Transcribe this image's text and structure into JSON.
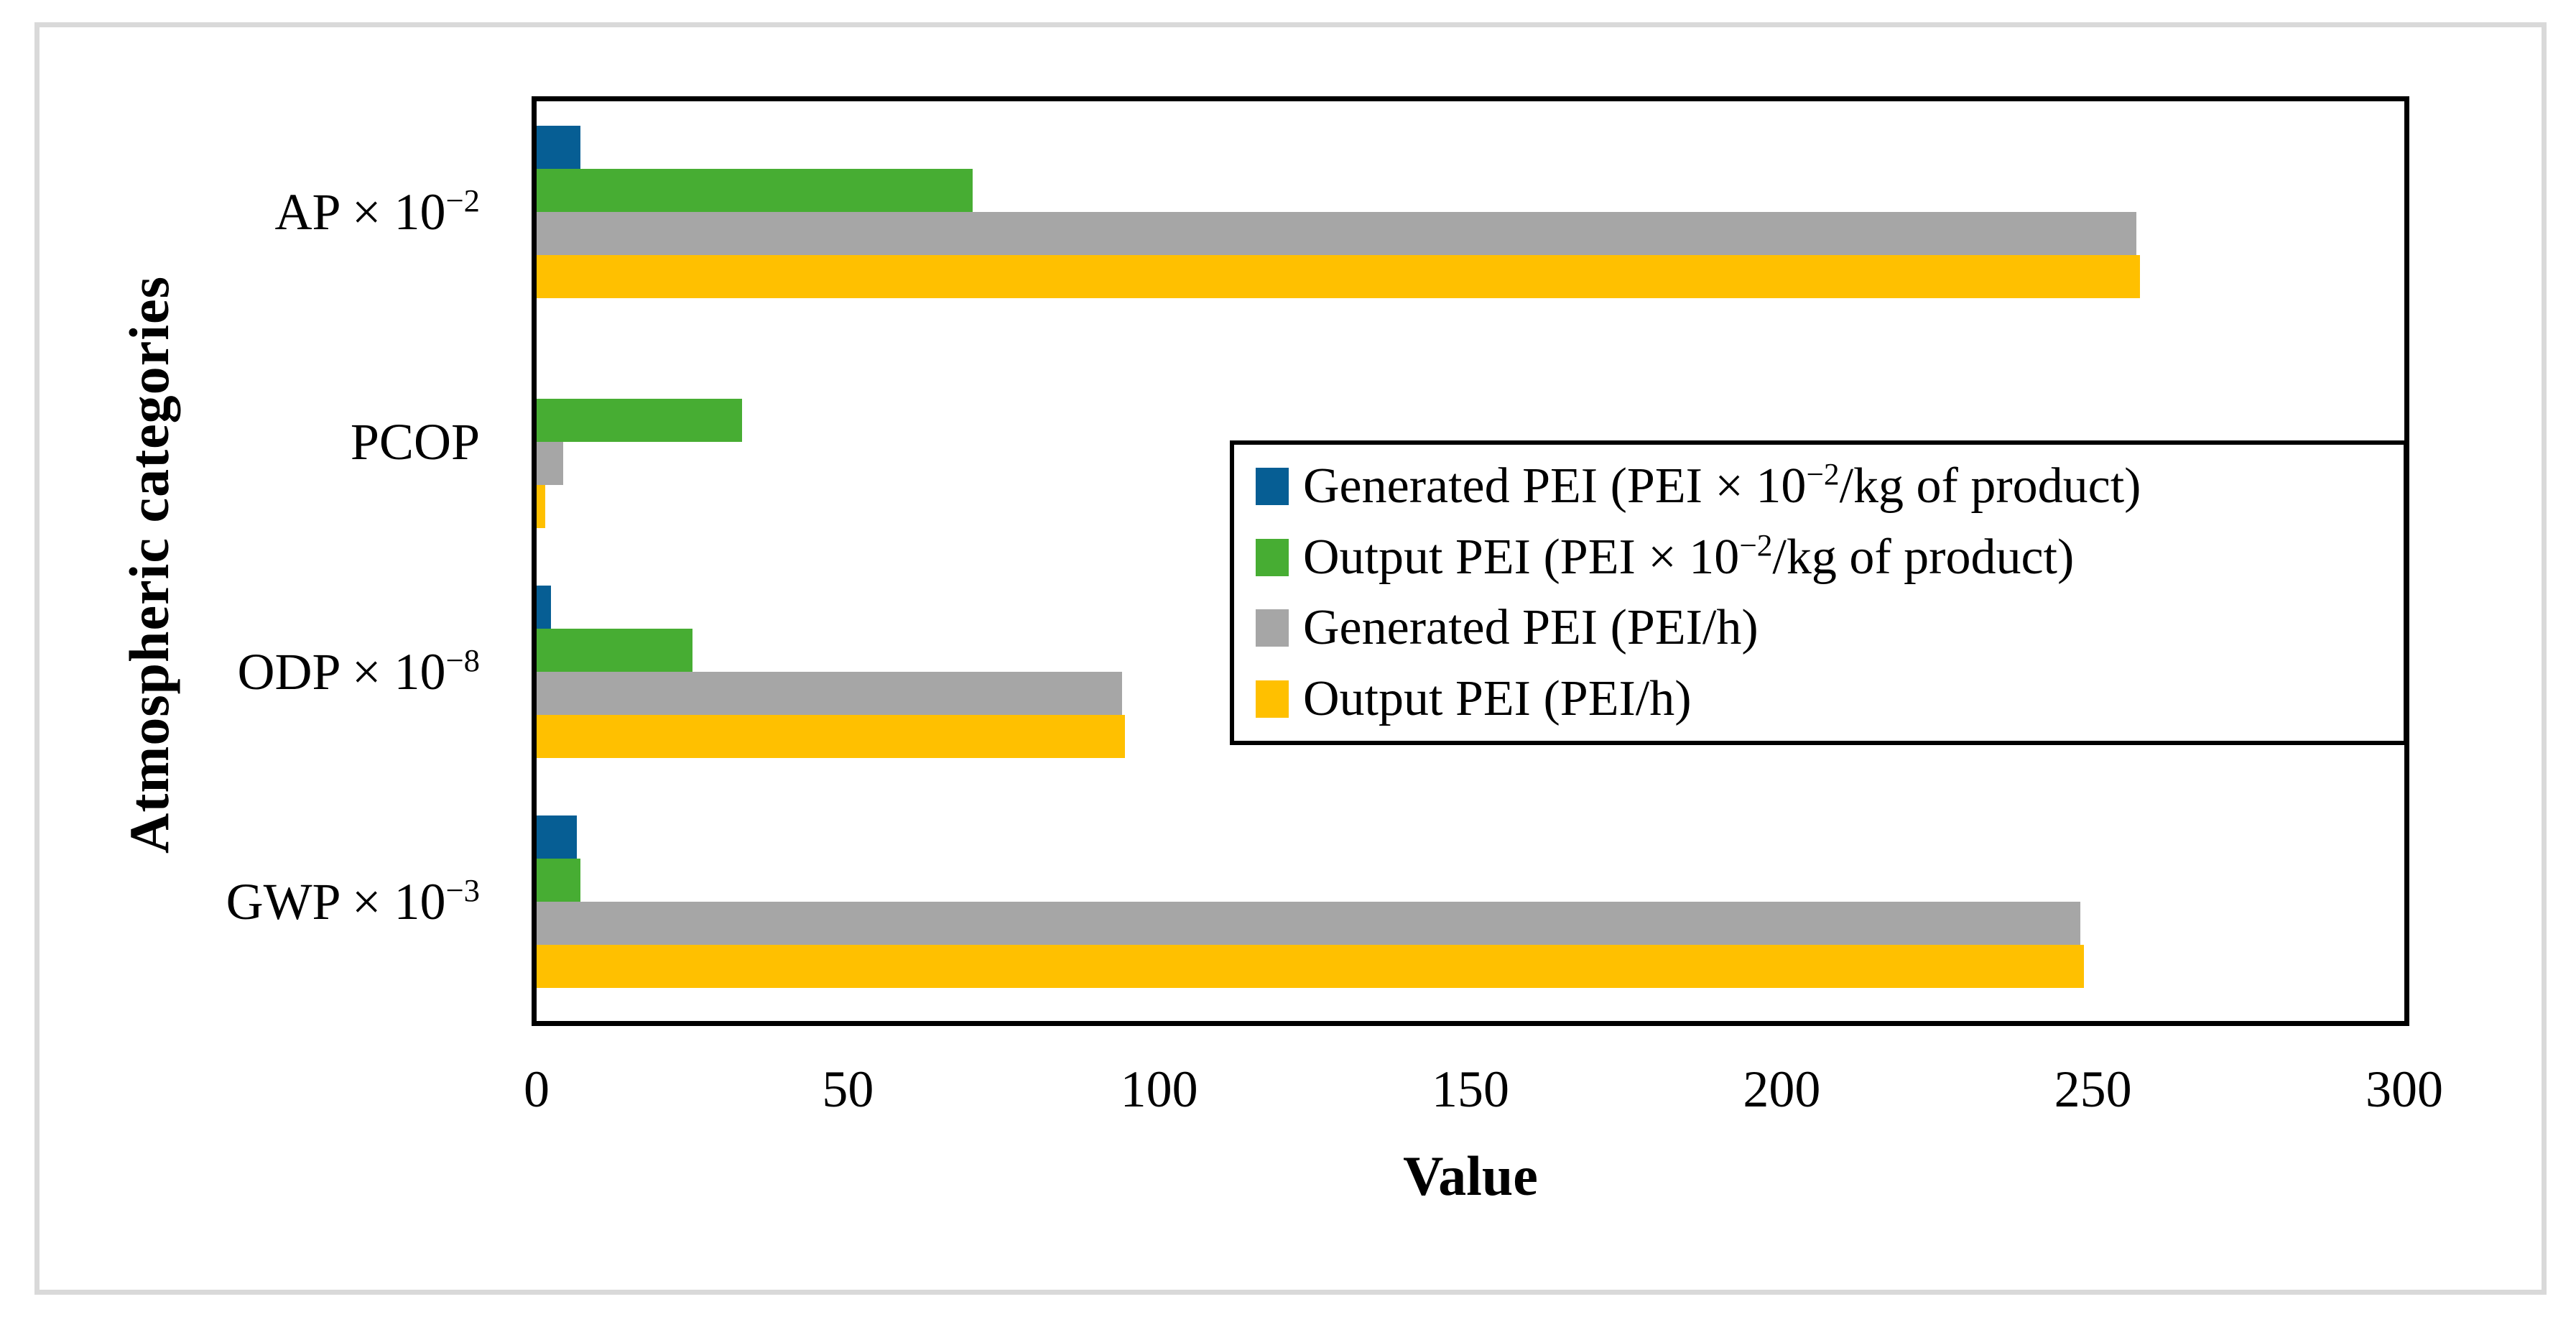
{
  "figure": {
    "background": "#ffffff",
    "frame_color": "#d9d9d9",
    "plot_border_color": "#000000"
  },
  "chart_data": {
    "type": "bar",
    "orientation": "horizontal",
    "title": "",
    "xlabel": "Value",
    "ylabel": "Atmospheric categories",
    "xlim": [
      0,
      300
    ],
    "xticks": [
      0,
      50,
      100,
      150,
      200,
      250,
      300
    ],
    "grid": false,
    "legend_position": "center-right-inside",
    "categories": [
      {
        "id": "ap",
        "pre": "AP × 10",
        "sup": "−2",
        "post": ""
      },
      {
        "id": "pcop",
        "pre": "PCOP",
        "sup": "",
        "post": ""
      },
      {
        "id": "odp",
        "pre": "ODP × 10",
        "sup": "−8",
        "post": ""
      },
      {
        "id": "gwp",
        "pre": "GWP × 10",
        "sup": "−3",
        "post": ""
      }
    ],
    "series": [
      {
        "id": "generated-pei-per-kg",
        "pre": "Generated PEI (PEI × 10",
        "sup": "−2",
        "post": "/kg of product)",
        "color": "#065E94",
        "values": [
          7,
          0,
          2.3,
          6.5
        ]
      },
      {
        "id": "output-pei-per-kg",
        "pre": "Output PEI (PEI × 10",
        "sup": "−2",
        "post": "/kg of product)",
        "color": "#47AD33",
        "values": [
          70,
          33,
          25,
          7
        ]
      },
      {
        "id": "generated-pei-per-h",
        "pre": "Generated PEI (PEI/h)",
        "sup": "",
        "post": "",
        "color": "#A6A6A6",
        "values": [
          257,
          4.3,
          94,
          248
        ]
      },
      {
        "id": "output-pei-per-h",
        "pre": "Output PEI (PEI/h)",
        "sup": "",
        "post": "",
        "color": "#FFC000",
        "values": [
          257.5,
          1.4,
          94.5,
          248.5
        ]
      }
    ]
  }
}
